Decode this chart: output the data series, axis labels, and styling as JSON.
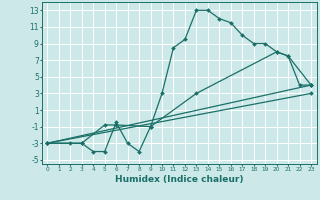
{
  "xlabel": "Humidex (Indice chaleur)",
  "xlim": [
    -0.5,
    23.5
  ],
  "ylim": [
    -5.5,
    14
  ],
  "xticks": [
    0,
    1,
    2,
    3,
    4,
    5,
    6,
    7,
    8,
    9,
    10,
    11,
    12,
    13,
    14,
    15,
    16,
    17,
    18,
    19,
    20,
    21,
    22,
    23
  ],
  "yticks": [
    -5,
    -3,
    -1,
    1,
    3,
    5,
    7,
    9,
    11,
    13
  ],
  "bg_color": "#cce8e8",
  "grid_color": "#ffffff",
  "line_color": "#1a7068",
  "markersize": 2.0,
  "linewidth": 0.9,
  "lines": [
    {
      "x": [
        0,
        2,
        3,
        4,
        5,
        6,
        7,
        8,
        9,
        10,
        11,
        12,
        13,
        14,
        15,
        16,
        17,
        18,
        19,
        20,
        21,
        22,
        23
      ],
      "y": [
        -3,
        -3,
        -3,
        -4,
        -4,
        -0.5,
        -3,
        -4,
        -1,
        3,
        8.5,
        9.5,
        13,
        13,
        12,
        11.5,
        10,
        9,
        9,
        8,
        7.5,
        4,
        4
      ]
    },
    {
      "x": [
        0,
        3,
        5,
        6,
        9,
        13,
        20,
        21,
        23
      ],
      "y": [
        -3,
        -3,
        -0.8,
        -0.8,
        -1,
        3,
        8,
        7.5,
        4
      ]
    },
    {
      "x": [
        0,
        23
      ],
      "y": [
        -3,
        4
      ]
    },
    {
      "x": [
        0,
        23
      ],
      "y": [
        -3,
        3
      ]
    }
  ]
}
